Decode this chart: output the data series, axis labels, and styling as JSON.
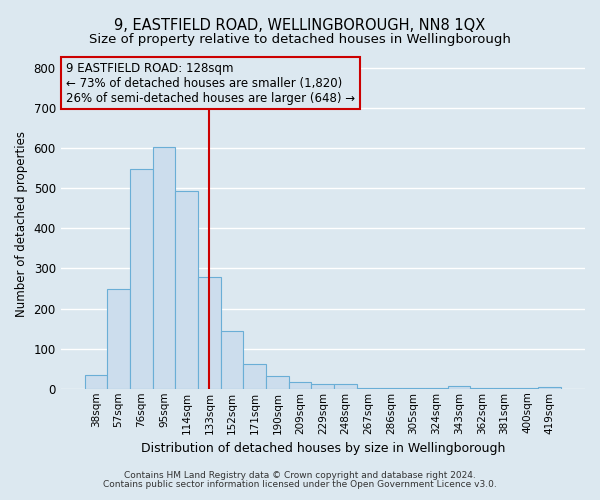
{
  "title": "9, EASTFIELD ROAD, WELLINGBOROUGH, NN8 1QX",
  "subtitle": "Size of property relative to detached houses in Wellingborough",
  "xlabel": "Distribution of detached houses by size in Wellingborough",
  "ylabel": "Number of detached properties",
  "footer_line1": "Contains HM Land Registry data © Crown copyright and database right 2024.",
  "footer_line2": "Contains public sector information licensed under the Open Government Licence v3.0.",
  "bar_labels": [
    "38sqm",
    "57sqm",
    "76sqm",
    "95sqm",
    "114sqm",
    "133sqm",
    "152sqm",
    "171sqm",
    "190sqm",
    "209sqm",
    "229sqm",
    "248sqm",
    "267sqm",
    "286sqm",
    "305sqm",
    "324sqm",
    "343sqm",
    "362sqm",
    "381sqm",
    "400sqm",
    "419sqm"
  ],
  "bar_heights": [
    35,
    248,
    548,
    602,
    493,
    278,
    143,
    62,
    33,
    18,
    12,
    11,
    3,
    2,
    1,
    1,
    6,
    1,
    1,
    1,
    4
  ],
  "bar_color": "#ccdded",
  "bar_edgecolor": "#6aaed6",
  "vline_x": 5.0,
  "vline_color": "#cc0000",
  "annotation_title": "9 EASTFIELD ROAD: 128sqm",
  "annotation_line1": "← 73% of detached houses are smaller (1,820)",
  "annotation_line2": "26% of semi-detached houses are larger (648) →",
  "annotation_box_edgecolor": "#cc0000",
  "ylim": [
    0,
    820
  ],
  "yticks": [
    0,
    100,
    200,
    300,
    400,
    500,
    600,
    700,
    800
  ],
  "bg_color": "#dce8f0",
  "grid_color": "#ffffff",
  "title_fontsize": 10.5,
  "subtitle_fontsize": 9.5,
  "footer_fontsize": 6.5
}
